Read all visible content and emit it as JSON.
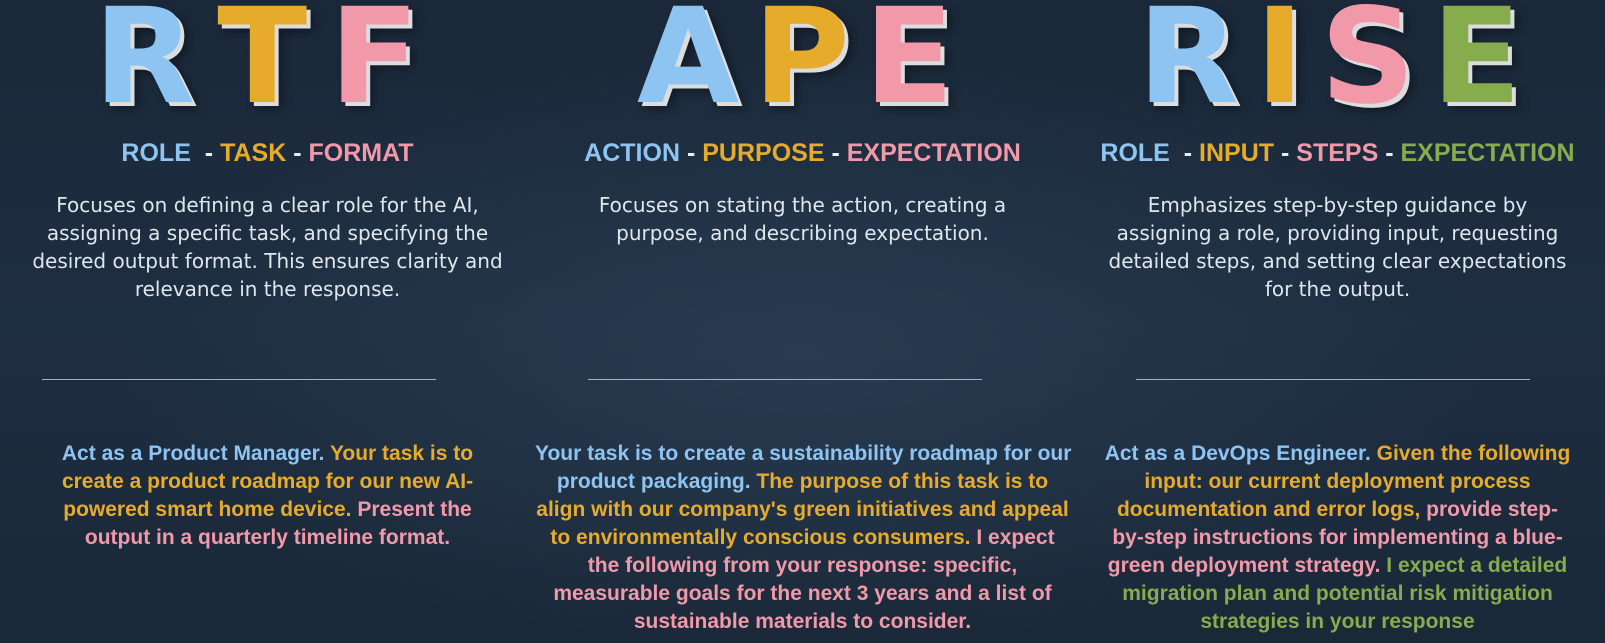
{
  "colors": {
    "blue": "#8ec4f2",
    "gold": "#e7ab2c",
    "pink": "#f299a9",
    "green": "#86ac4e",
    "background": "#1c2b3d"
  },
  "frameworks": [
    {
      "letters": [
        "R",
        "T",
        "F"
      ],
      "components": [
        "ROLE",
        "TASK",
        "FORMAT"
      ],
      "separator": "-",
      "description_lines": [
        "Focuses on defining a clear role for the AI,",
        "assigning a specific task, and specifying the",
        "desired output format. This ensures clarity and",
        "relevance in the response."
      ],
      "example_lines": [
        [
          "Act as a Product Manager. ",
          "Your task is to"
        ],
        [
          "create a product roadmap for our new AI-"
        ],
        [
          "powered smart home device. ",
          "Present the"
        ],
        [
          "output in a quarterly timeline format."
        ]
      ]
    },
    {
      "letters": [
        "A",
        "P",
        "E"
      ],
      "components": [
        "ACTION",
        "PURPOSE",
        "EXPECTATION"
      ],
      "separator": "-",
      "description_lines": [
        "Focuses on stating the action, creating a",
        "purpose, and describing expectation."
      ],
      "example_lines": [
        [
          "Your task is to create a sustainability roadmap for our"
        ],
        [
          "product packaging. ",
          "The purpose of this task is to"
        ],
        [
          "align with our company's green initiatives and appeal"
        ],
        [
          "to environmentally conscious consumers. ",
          "I expect"
        ],
        [
          "the following from your response: specific,"
        ],
        [
          "measurable goals for the next 3 years and a list of"
        ],
        [
          "sustainable materials to consider."
        ]
      ]
    },
    {
      "letters": [
        "R",
        "I",
        "S",
        "E"
      ],
      "components": [
        "ROLE",
        "INPUT",
        "STEPS",
        "EXPECTATION"
      ],
      "separator": "-",
      "description_lines": [
        "Emphasizes step-by-step guidance by",
        "assigning a role, providing input, requesting",
        "detailed steps, and setting clear expectations",
        "for the output."
      ],
      "example_lines": [
        [
          "Act as a DevOps Engineer. ",
          "Given the following"
        ],
        [
          "input: our current deployment process"
        ],
        [
          "documentation and error logs, ",
          "provide step-"
        ],
        [
          "by-step instructions for implementing a blue-"
        ],
        [
          "green deployment strategy. ",
          "I expect a detailed"
        ],
        [
          "migration plan and potential risk mitigation"
        ],
        [
          "strategies in your response"
        ]
      ]
    }
  ]
}
